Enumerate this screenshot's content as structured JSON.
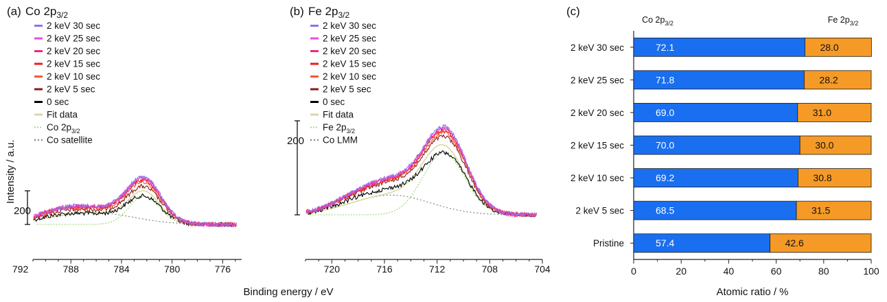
{
  "shared": {
    "ylabel": "Intensity / a.u.",
    "xlabel": "Binding energy / eV",
    "scalebar_label": "200",
    "legend_order": [
      "2 keV 30 sec",
      "2 keV 25 sec",
      "2 keV 20 sec",
      "2 keV 15 sec",
      "2 keV 10 sec",
      "2 keV 5 sec",
      "0 sec",
      "Fit data"
    ],
    "colors": {
      "2 keV 30 sec": "#8f73e6",
      "2 keV 25 sec": "#e64ce0",
      "2 keV 20 sec": "#f0287a",
      "2 keV 15 sec": "#ee1a1a",
      "2 keV 10 sec": "#f25a2c",
      "2 keV 5 sec": "#8b1a1a",
      "0 sec": "#000000",
      "Fit data": "#d8d8a4",
      "component": "#a8dc80",
      "satellite": "#8c8c8c",
      "bar_co": "#1a6ff0",
      "bar_fe": "#f59a26"
    }
  },
  "chart_data": [
    {
      "type": "line",
      "panel_label": "(a)",
      "title_main": "Co 2p",
      "title_sub": "3/2",
      "xlim": [
        791,
        774.5
      ],
      "xticks": [
        792,
        788,
        784,
        780,
        776
      ],
      "peak_ev": 782.2,
      "peak_heights": {
        "0 sec": 360,
        "2 keV 5 sec": 480,
        "2 keV 10 sec": 540,
        "2 keV 15 sec": 560,
        "2 keV 20 sec": 580,
        "2 keV 25 sec": 590,
        "2 keV 30 sec": 600
      },
      "legend": [
        {
          "label": "2 keV 30 sec",
          "kind": "series"
        },
        {
          "label": "2 keV 25 sec",
          "kind": "series"
        },
        {
          "label": "2 keV 20 sec",
          "kind": "series"
        },
        {
          "label": "2 keV 15 sec",
          "kind": "series"
        },
        {
          "label": "2 keV 10 sec",
          "kind": "series"
        },
        {
          "label": "2 keV 5 sec",
          "kind": "series"
        },
        {
          "label": "0 sec",
          "kind": "series"
        },
        {
          "label": "Fit data",
          "kind": "fit"
        },
        {
          "label": "Co 2p",
          "sub": "3/2",
          "kind": "component"
        },
        {
          "label": "Co satellite",
          "kind": "satellite"
        }
      ]
    },
    {
      "type": "line",
      "panel_label": "(b)",
      "title_main": "Fe 2p",
      "title_sub": "3/2",
      "xlim": [
        722,
        704
      ],
      "xticks": [
        720,
        716,
        712,
        708,
        704
      ],
      "peak_ev": 711.3,
      "peak_heights": {
        "0 sec": 620,
        "2 keV 5 sec": 780,
        "2 keV 10 sec": 820,
        "2 keV 15 sec": 840,
        "2 keV 20 sec": 860,
        "2 keV 25 sec": 870,
        "2 keV 30 sec": 880
      },
      "legend": [
        {
          "label": "2 keV 30 sec",
          "kind": "series"
        },
        {
          "label": "2 keV 25 sec",
          "kind": "series"
        },
        {
          "label": "2 keV 20 sec",
          "kind": "series"
        },
        {
          "label": "2 keV 15 sec",
          "kind": "series"
        },
        {
          "label": "2 keV 10 sec",
          "kind": "series"
        },
        {
          "label": "2 keV 5 sec",
          "kind": "series"
        },
        {
          "label": "0 sec",
          "kind": "series"
        },
        {
          "label": "Fit data",
          "kind": "fit"
        },
        {
          "label": "Fe 2p",
          "sub": "3/2",
          "kind": "component"
        },
        {
          "label": "Co LMM",
          "kind": "satellite"
        }
      ]
    },
    {
      "type": "bar",
      "orientation": "horizontal",
      "stacked": true,
      "panel_label": "(c)",
      "categories": [
        "2 keV 30 sec",
        "2 keV 25 sec",
        "2 keV 20 sec",
        "2 keV 15 sec",
        "2 keV 10 sec",
        "2 keV 5 sec",
        "Pristine"
      ],
      "series": [
        {
          "name": "Co 2p",
          "sub": "3/2",
          "values": [
            72.1,
            71.8,
            69.0,
            70.0,
            69.2,
            68.5,
            57.4
          ]
        },
        {
          "name": "Fe 2p",
          "sub": "3/2",
          "values": [
            28.0,
            28.2,
            31.0,
            30.0,
            30.8,
            31.5,
            42.6
          ]
        }
      ],
      "value_labels_co": [
        "72.1",
        "71.8",
        "69.0",
        "70.0",
        "69.2",
        "68.5",
        "57.4"
      ],
      "value_labels_fe": [
        "28.0",
        "28.2",
        "31.0",
        "30.0",
        "30.8",
        "31.5",
        "42.6"
      ],
      "xlabel": "Atomic ratio / %",
      "xlim": [
        0,
        100
      ],
      "xticks": [
        0,
        20,
        40,
        60,
        80,
        100
      ]
    }
  ]
}
